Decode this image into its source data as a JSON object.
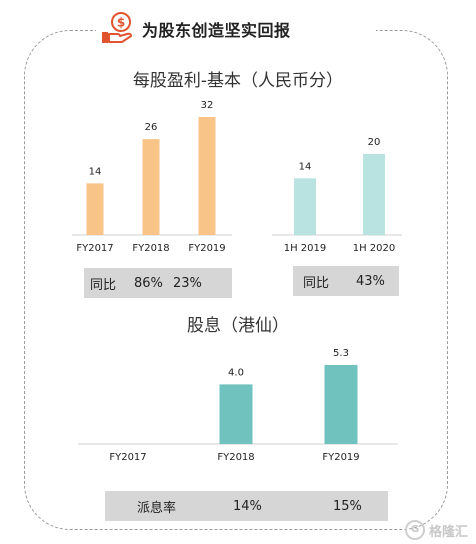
{
  "header": {
    "title": "为股东创造坚实回报",
    "icon": "dollar-hand-icon",
    "accent": "#e0552f"
  },
  "eps_section": {
    "title": "每股盈利-基本（人民币分）"
  },
  "dividend_section": {
    "title": "股息（港仙）"
  },
  "yoy_fy": {
    "label": "同比",
    "values": [
      "86%",
      "23%"
    ]
  },
  "yoy_1h": {
    "label": "同比",
    "values": [
      "43%"
    ]
  },
  "payout": {
    "label": "派息率",
    "values": [
      "14%",
      "15%"
    ]
  },
  "watermark": {
    "text": "格隆汇",
    "icon": "g-circle-icon"
  },
  "colors": {
    "orange": "#f8c488",
    "light_teal": "#b8e3e1",
    "teal": "#6fc2bd",
    "box_gray": "#d6d6d6"
  },
  "chart_data": [
    {
      "type": "bar",
      "title": "每股盈利-基本（人民币分）",
      "categories": [
        "FY2017",
        "FY2018",
        "FY2019"
      ],
      "values": [
        14,
        26,
        32
      ],
      "labels": [
        "14",
        "26",
        "32"
      ],
      "color": "#f8c488"
    },
    {
      "type": "bar",
      "title": "每股盈利-基本（人民币分）",
      "categories": [
        "1H 2019",
        "1H 2020"
      ],
      "values": [
        14,
        20
      ],
      "labels": [
        "14",
        "20"
      ],
      "color": "#b8e3e1"
    },
    {
      "type": "bar",
      "title": "股息（港仙）",
      "categories": [
        "FY2017",
        "FY2018",
        "FY2019"
      ],
      "values": [
        null,
        4.0,
        5.3
      ],
      "labels": [
        "",
        "4.0",
        "5.3"
      ],
      "color": "#6fc2bd"
    }
  ]
}
